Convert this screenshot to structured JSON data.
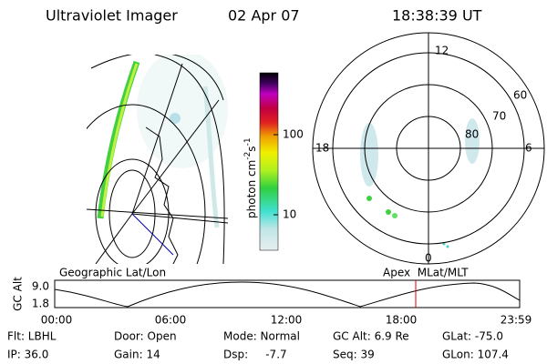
{
  "header": {
    "title": "Ultraviolet Imager",
    "date": "02 Apr 07",
    "time": "18:38:39 UT"
  },
  "colorbar": {
    "label_main": "photon cm",
    "sup1": "-2",
    "mid": "s",
    "sup2": "-1",
    "ticks": [
      "100",
      "10"
    ]
  },
  "polar": {
    "labels": [
      "12",
      "18",
      "6",
      "0",
      "60",
      "70",
      "80"
    ]
  },
  "altitude_plot": {
    "left_title": "Geographic Lat/Lon",
    "right_title": "Apex  MLat/MLT",
    "y_label": "GC Alt",
    "yticks": [
      "9.0",
      "1.8"
    ],
    "xticks": [
      "00:00",
      "06:00",
      "12:00",
      "18:00",
      "23:59"
    ]
  },
  "status": {
    "rows": [
      [
        "Flt: LBHL",
        "Door: Open",
        "Mode: Normal",
        "GC Alt: 6.9 Re",
        "GLat: -75.0"
      ],
      [
        "IP: 36.0",
        "Gain: 14",
        "Dsp:     -7.7",
        "Seq: 39",
        "GLon: 107.4"
      ]
    ]
  }
}
